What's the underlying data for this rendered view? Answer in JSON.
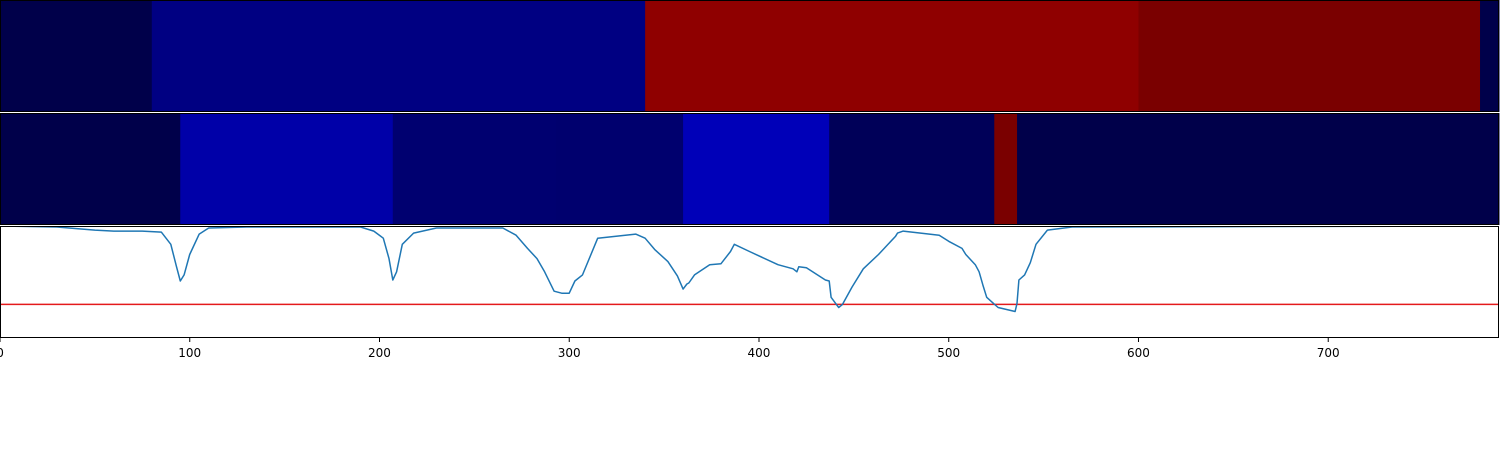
{
  "chart_data": [
    {
      "type": "heatmap",
      "segments": [
        {
          "start": 0,
          "end": 80,
          "color": "#00004a"
        },
        {
          "start": 80,
          "end": 340,
          "color": "#000082"
        },
        {
          "start": 340,
          "end": 600,
          "color": "#8f0000"
        },
        {
          "start": 600,
          "end": 780,
          "color": "#7a0000"
        },
        {
          "start": 780,
          "end": 790,
          "color": "#00004a"
        }
      ]
    },
    {
      "type": "heatmap",
      "segments": [
        {
          "start": 0,
          "end": 95,
          "color": "#00004a"
        },
        {
          "start": 95,
          "end": 207,
          "color": "#0000a8"
        },
        {
          "start": 207,
          "end": 293,
          "color": "#000070"
        },
        {
          "start": 293,
          "end": 360,
          "color": "#00006e"
        },
        {
          "start": 360,
          "end": 437,
          "color": "#0000b8"
        },
        {
          "start": 437,
          "end": 524,
          "color": "#000058"
        },
        {
          "start": 524,
          "end": 536,
          "color": "#7a0000"
        },
        {
          "start": 536,
          "end": 790,
          "color": "#00004a"
        }
      ]
    },
    {
      "type": "line",
      "xlim": [
        0,
        790
      ],
      "ylim": [
        -0.1,
        1.0
      ],
      "xticks": [
        0,
        100,
        200,
        300,
        400,
        500,
        600,
        700
      ],
      "threshold": {
        "value": 0.23,
        "color": "#e41a1c"
      },
      "series": [
        {
          "color": "#1f77b4",
          "x": [
            0,
            30,
            50,
            60,
            75,
            85,
            90,
            93,
            95,
            97,
            100,
            105,
            110,
            130,
            190,
            197,
            202,
            205,
            207,
            209,
            212,
            218,
            230,
            265,
            272,
            278,
            283,
            287,
            292,
            296,
            300,
            303,
            307,
            315,
            335,
            340,
            345,
            352,
            357,
            360,
            362,
            363,
            366,
            374,
            380,
            385,
            387,
            395,
            410,
            418,
            420,
            421,
            425,
            435,
            437,
            438,
            440,
            442,
            444,
            449,
            455,
            463,
            472,
            473,
            476,
            495,
            500,
            507,
            509,
            514,
            516,
            518,
            520,
            523,
            526,
            535,
            536,
            537,
            540,
            543,
            546,
            552,
            565,
            790
          ],
          "y": [
            1.0,
            0.99,
            0.96,
            0.95,
            0.95,
            0.94,
            0.82,
            0.6,
            0.46,
            0.52,
            0.72,
            0.92,
            0.98,
            0.99,
            0.99,
            0.95,
            0.88,
            0.68,
            0.47,
            0.55,
            0.82,
            0.93,
            0.98,
            0.98,
            0.91,
            0.78,
            0.68,
            0.55,
            0.36,
            0.34,
            0.34,
            0.46,
            0.52,
            0.88,
            0.92,
            0.88,
            0.77,
            0.65,
            0.51,
            0.38,
            0.43,
            0.44,
            0.52,
            0.62,
            0.63,
            0.75,
            0.82,
            0.75,
            0.62,
            0.58,
            0.55,
            0.6,
            0.59,
            0.47,
            0.46,
            0.3,
            0.25,
            0.2,
            0.23,
            0.4,
            0.58,
            0.72,
            0.9,
            0.93,
            0.95,
            0.91,
            0.85,
            0.78,
            0.72,
            0.62,
            0.55,
            0.42,
            0.3,
            0.25,
            0.2,
            0.16,
            0.24,
            0.47,
            0.52,
            0.64,
            0.82,
            0.96,
            0.99,
            1.0
          ]
        }
      ]
    }
  ]
}
